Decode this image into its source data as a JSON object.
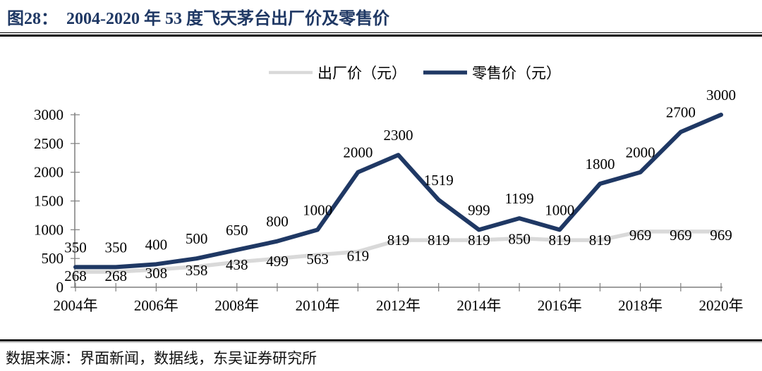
{
  "figure": {
    "number": "图28：",
    "title": "2004-2020 年 53 度飞天茅台出厂价及零售价"
  },
  "source": {
    "label": "数据来源：",
    "text": "界面新闻，数据线，东吴证券研究所"
  },
  "colors": {
    "title_navy": "#1F3864",
    "retail_line": "#1F3864",
    "factory_line": "#D9D9D9",
    "axis": "#7F7F7F",
    "label_text": "#000000",
    "rule": "#000000"
  },
  "chart_data": {
    "type": "line",
    "title": "2004-2020 年 53 度飞天茅台出厂价及零售价",
    "x": [
      2004,
      2005,
      2006,
      2007,
      2008,
      2009,
      2010,
      2011,
      2012,
      2013,
      2014,
      2015,
      2016,
      2017,
      2018,
      2019,
      2020
    ],
    "x_tick_labels": [
      "2004年",
      "2006年",
      "2008年",
      "2010年",
      "2012年",
      "2014年",
      "2016年",
      "2018年",
      "2020年"
    ],
    "series": [
      {
        "name": "出厂价（元）",
        "color": "#D9D9D9",
        "values": [
          268,
          268,
          308,
          358,
          438,
          499,
          563,
          619,
          819,
          819,
          819,
          850,
          819,
          819,
          969,
          969,
          969
        ]
      },
      {
        "name": "零售价（元）",
        "color": "#1F3864",
        "values": [
          350,
          350,
          400,
          500,
          650,
          800,
          1000,
          2000,
          2300,
          1519,
          999,
          1199,
          1000,
          1800,
          2000,
          2700,
          3000
        ]
      }
    ],
    "ylim": [
      0,
      3000
    ],
    "y_ticks": [
      0,
      500,
      1000,
      1500,
      2000,
      2500,
      3000
    ],
    "grid": false,
    "legend_position": "top-center",
    "data_labels": true
  }
}
